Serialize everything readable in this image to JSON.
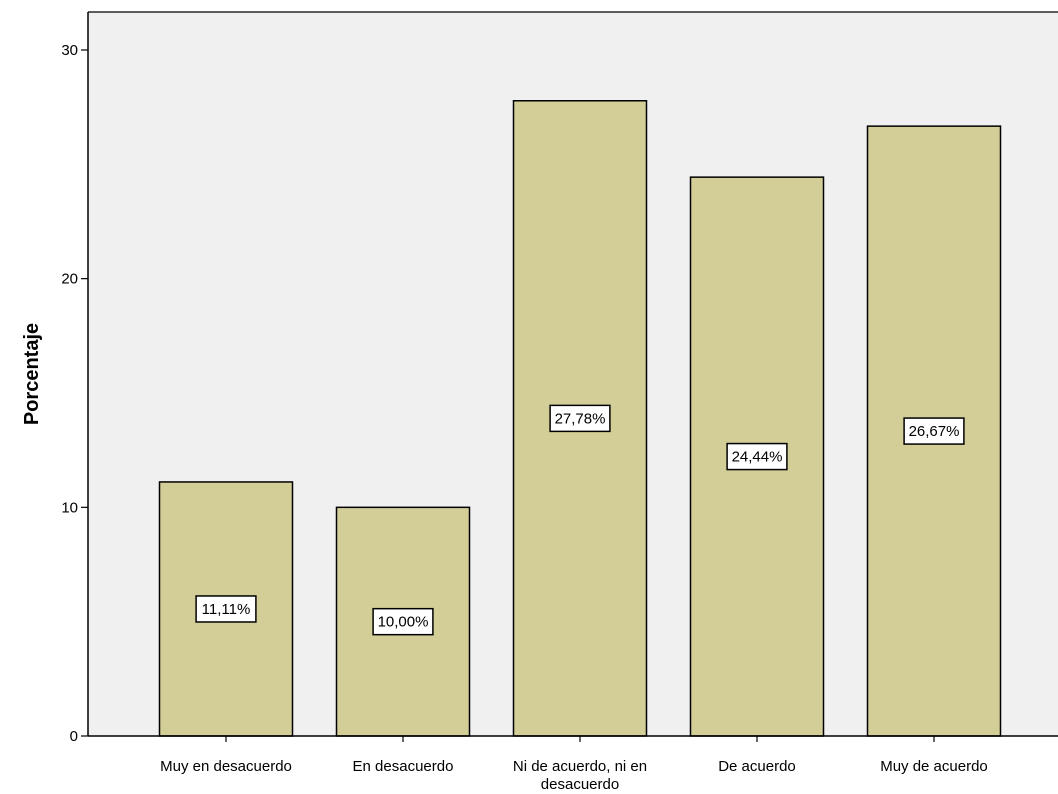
{
  "chart_data": {
    "type": "bar",
    "categories": [
      [
        "Muy en desacuerdo"
      ],
      [
        "En desacuerdo"
      ],
      [
        "Ni de acuerdo, ni en",
        "desacuerdo"
      ],
      [
        "De acuerdo"
      ],
      [
        "Muy de acuerdo"
      ]
    ],
    "values": [
      11.11,
      10.0,
      27.78,
      24.44,
      26.67
    ],
    "data_labels": [
      "11,11%",
      "10,00%",
      "27,78%",
      "24,44%",
      "26,67%"
    ],
    "title": "",
    "xlabel": "",
    "ylabel": "Porcentaje",
    "ylim": [
      0,
      30
    ],
    "yticks": [
      0,
      10,
      20,
      30
    ],
    "grid": false,
    "colors": {
      "plot_background": "#f0f0f0",
      "bar_fill": "#d3ce97",
      "bar_stroke": "#000000"
    }
  }
}
